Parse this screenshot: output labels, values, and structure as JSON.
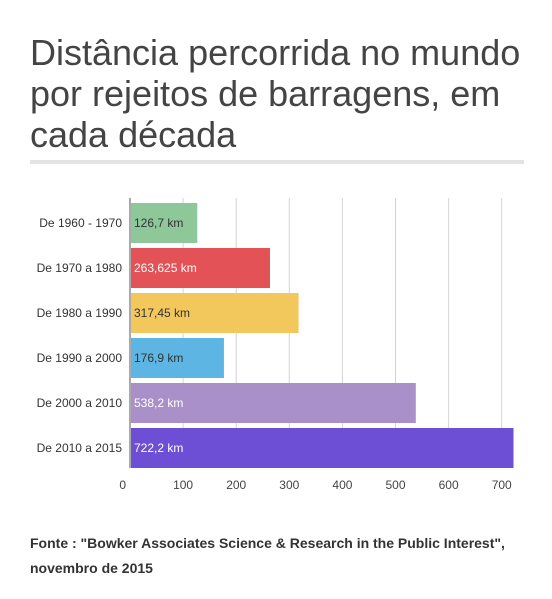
{
  "title": "Distância percorrida no mundo por rejeitos de barragens, em cada década",
  "source": "Fonte : \"Bowker Associates Science & Research in the Public Interest\", novembro de 2015",
  "chart_data": {
    "type": "bar",
    "orientation": "horizontal",
    "categories": [
      "De 1960 - 1970",
      "De 1970 a 1980",
      "De 1980 a 1990",
      "De 1990 a 2000",
      "De 2000 a 2010",
      "De 2010 a 2015"
    ],
    "values": [
      126.7,
      263.625,
      317.45,
      176.9,
      538.2,
      722.2
    ],
    "data_labels": [
      "126,7 km",
      "263,625 km",
      "317,45 km",
      "176,9 km",
      "538,2 km",
      "722,2 km"
    ],
    "colors": [
      "#8dc79a",
      "#e35256",
      "#f2c75c",
      "#5db5e3",
      "#aa90c9",
      "#6c4fd4"
    ],
    "label_colors": [
      "#333333",
      "#ffffff",
      "#333333",
      "#333333",
      "#ffffff",
      "#ffffff"
    ],
    "xticks": [
      0,
      100,
      200,
      300,
      400,
      500,
      600,
      700
    ],
    "xlim": [
      0,
      725
    ],
    "grid": true,
    "title": "",
    "xlabel": "",
    "ylabel": ""
  }
}
